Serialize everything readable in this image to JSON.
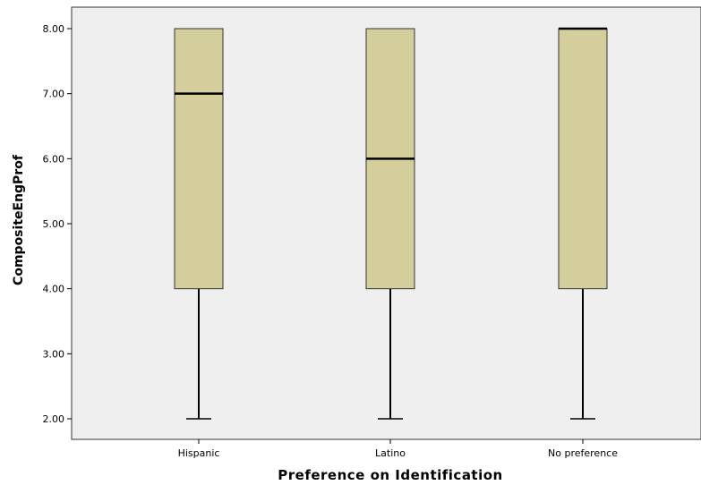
{
  "chart_data": {
    "type": "boxplot",
    "xlabel": "Preference on Identification",
    "ylabel": "CompositeEngProf",
    "ylim": [
      1.85,
      8.33
    ],
    "yticks": [
      "2.00",
      "3.00",
      "4.00",
      "5.00",
      "6.00",
      "7.00",
      "8.00"
    ],
    "ytick_values": [
      2,
      3,
      4,
      5,
      6,
      7,
      8
    ],
    "categories": [
      "Hispanic",
      "Latino",
      "No preference"
    ],
    "boxes": [
      {
        "category": "Hispanic",
        "min": 2,
        "q1": 4,
        "median": 7,
        "q3": 8,
        "max": 8
      },
      {
        "category": "Latino",
        "min": 2,
        "q1": 4,
        "median": 6,
        "q3": 8,
        "max": 8
      },
      {
        "category": "No preference",
        "min": 2,
        "q1": 4,
        "median": 8,
        "q3": 8,
        "max": 8
      }
    ],
    "grid": false,
    "colors": {
      "plot_background": "#efefef",
      "box_fill": "#d3ce9b",
      "box_stroke": "#333333",
      "median": "#000000"
    }
  }
}
